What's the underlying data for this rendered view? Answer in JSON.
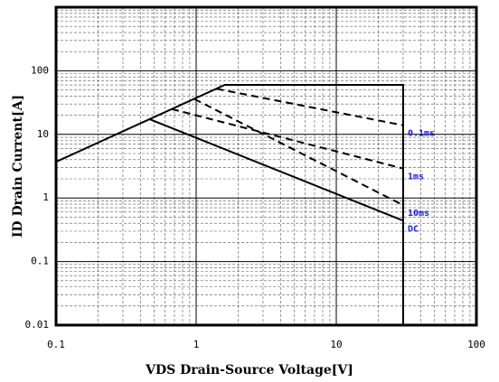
{
  "chart_data": {
    "type": "line",
    "x_label": "VDS Drain-Source Voltage[V]",
    "y_label": "ID Drain Current[A]",
    "xscale": "log",
    "yscale": "log",
    "grid": true,
    "xlim": [
      0.1,
      100
    ],
    "ylim": [
      0.01,
      1000
    ],
    "xticks": [
      0.1,
      1,
      10,
      100
    ],
    "yticks": [
      0.01,
      0.1,
      1,
      10,
      100
    ],
    "limit_line": {
      "color": "#000000",
      "x": [
        0.1,
        1.6,
        30,
        30
      ],
      "y": [
        3.7,
        60,
        60,
        0.01
      ]
    },
    "label_color": "#1a1aff",
    "series": [
      {
        "name": "0.1ms",
        "color": "#000000",
        "dashed": true,
        "x": [
          1.4,
          30
        ],
        "values": [
          52,
          13.9
        ]
      },
      {
        "name": "1ms",
        "color": "#000000",
        "dashed": true,
        "x": [
          0.67,
          30
        ],
        "values": [
          25,
          2.9
        ]
      },
      {
        "name": "10ms",
        "color": "#000000",
        "dashed": true,
        "x": [
          0.97,
          30
        ],
        "values": [
          36,
          0.77
        ]
      },
      {
        "name": "DC",
        "color": "#000000",
        "dashed": false,
        "x": [
          0.46,
          30
        ],
        "values": [
          17.5,
          0.44
        ]
      }
    ]
  }
}
